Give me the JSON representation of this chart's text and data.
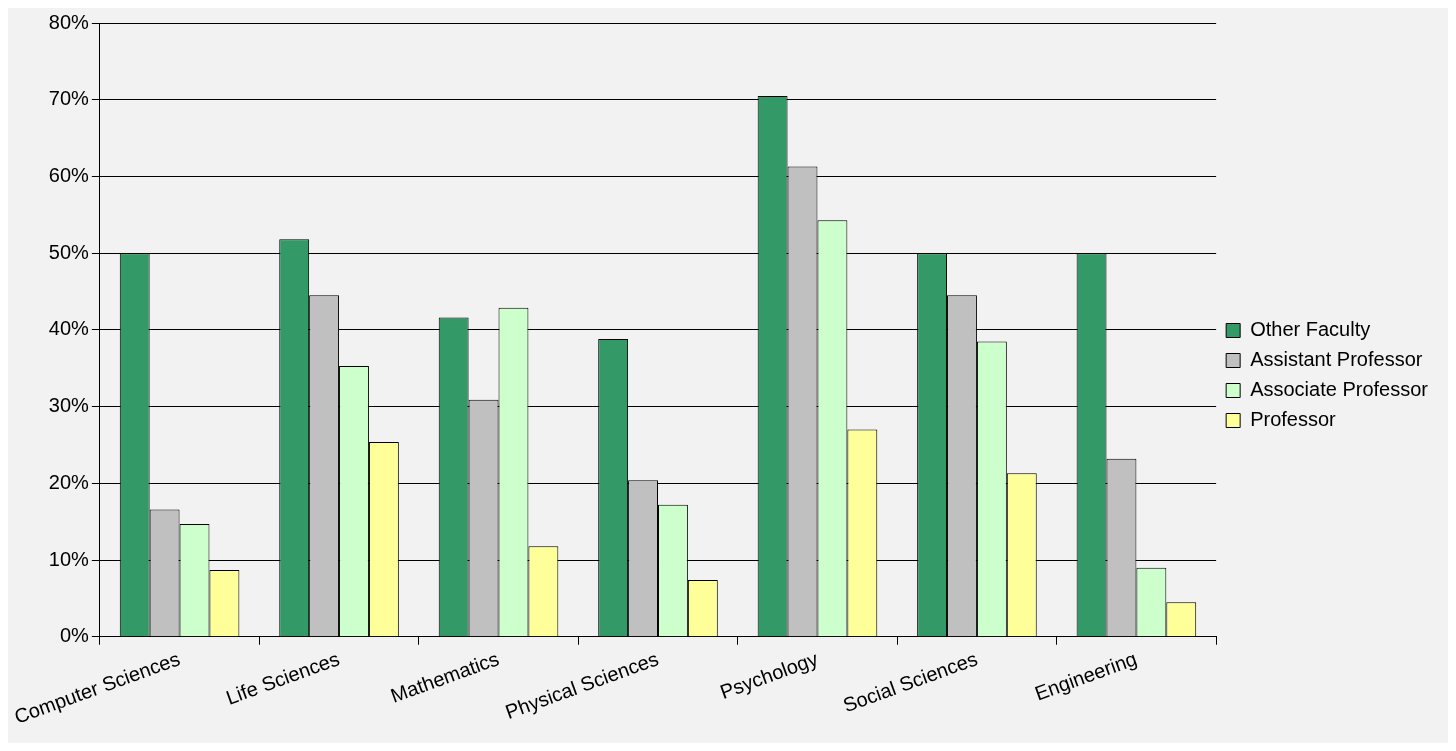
{
  "chart_data": {
    "type": "bar",
    "categories": [
      "Computer Sciences",
      "Life Sciences",
      "Mathematics",
      "Physical Sciences",
      "Psychology",
      "Social Sciences",
      "Engineering"
    ],
    "series": [
      {
        "name": "Other Faculty",
        "color": "#339966",
        "values": [
          50,
          51.8,
          41.6,
          38.8,
          70.5,
          50,
          50
        ]
      },
      {
        "name": "Assistant Professor",
        "color": "#c0c0c0",
        "values": [
          16.6,
          44.5,
          30.9,
          20.4,
          61.3,
          44.5,
          23.2
        ]
      },
      {
        "name": "Associate Professor",
        "color": "#ccffcc",
        "values": [
          14.7,
          35.3,
          42.9,
          17.2,
          54.3,
          38.5,
          9
        ]
      },
      {
        "name": "Professor",
        "color": "#ffff99",
        "values": [
          8.7,
          25.4,
          11.8,
          7.4,
          27,
          21.3,
          4.5
        ]
      }
    ],
    "ylim": [
      0,
      80
    ],
    "yticks": [
      {
        "value": 0,
        "label": "0%"
      },
      {
        "value": 10,
        "label": "10%"
      },
      {
        "value": 20,
        "label": "20%"
      },
      {
        "value": 30,
        "label": "30%"
      },
      {
        "value": 40,
        "label": "40%"
      },
      {
        "value": 50,
        "label": "50%"
      },
      {
        "value": 60,
        "label": "60%"
      },
      {
        "value": 70,
        "label": "70%"
      },
      {
        "value": 80,
        "label": "80%"
      }
    ],
    "grid": "y",
    "legend": "right"
  }
}
